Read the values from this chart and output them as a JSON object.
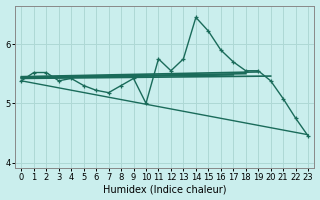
{
  "xlabel": "Humidex (Indice chaleur)",
  "bg_color": "#caeeed",
  "grid_color": "#aed8d5",
  "line_color": "#1a6b5a",
  "xlim": [
    -0.5,
    23.5
  ],
  "ylim": [
    3.9,
    6.65
  ],
  "yticks": [
    4,
    5,
    6
  ],
  "xticks": [
    0,
    1,
    2,
    3,
    4,
    5,
    6,
    7,
    8,
    9,
    10,
    11,
    12,
    13,
    14,
    15,
    16,
    17,
    18,
    19,
    20,
    21,
    22,
    23
  ],
  "series": [
    {
      "x": [
        0,
        1,
        2,
        3,
        4,
        5,
        6,
        7,
        8,
        9,
        10,
        11,
        12,
        13,
        14,
        15,
        16,
        17,
        18,
        19,
        20,
        21,
        22,
        23
      ],
      "y": [
        5.38,
        5.52,
        5.52,
        5.38,
        5.42,
        5.3,
        5.22,
        5.18,
        5.3,
        5.42,
        5.0,
        5.75,
        5.55,
        5.75,
        6.45,
        6.22,
        5.9,
        5.7,
        5.55,
        5.55,
        5.38,
        5.08,
        4.75,
        4.45
      ],
      "marker": true,
      "lw": 1.0
    },
    {
      "x": [
        0,
        19
      ],
      "y": [
        5.45,
        5.53
      ],
      "marker": false,
      "lw": 1.2
    },
    {
      "x": [
        0,
        18
      ],
      "y": [
        5.44,
        5.5
      ],
      "marker": false,
      "lw": 1.2
    },
    {
      "x": [
        0,
        17
      ],
      "y": [
        5.43,
        5.48
      ],
      "marker": false,
      "lw": 1.2
    },
    {
      "x": [
        0,
        20
      ],
      "y": [
        5.42,
        5.46
      ],
      "marker": false,
      "lw": 1.2
    },
    {
      "x": [
        0,
        23
      ],
      "y": [
        5.38,
        4.47
      ],
      "marker": false,
      "lw": 1.0
    }
  ]
}
